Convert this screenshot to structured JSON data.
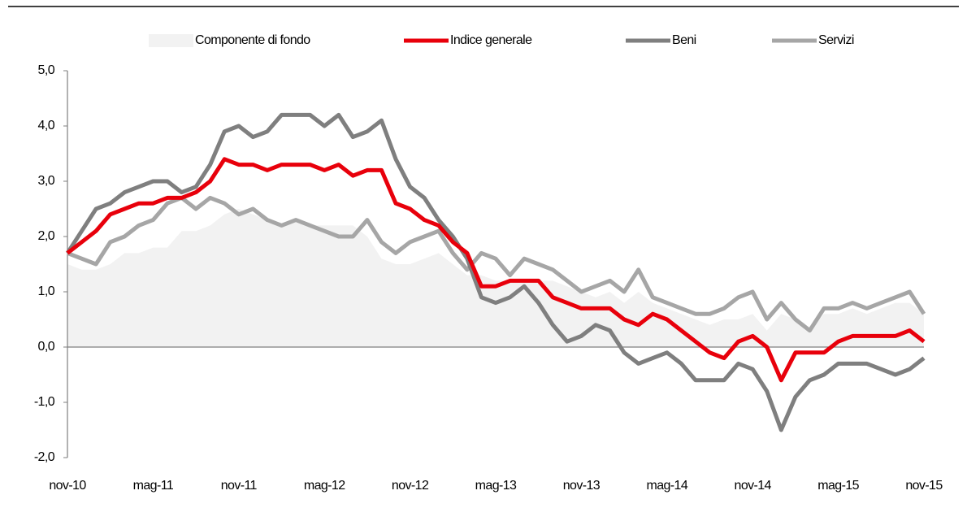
{
  "chart_data": {
    "type": "line",
    "categories": [
      "nov-10",
      null,
      null,
      null,
      null,
      null,
      "mag-11",
      null,
      null,
      null,
      null,
      null,
      "nov-11",
      null,
      null,
      null,
      null,
      null,
      "mag-12",
      null,
      null,
      null,
      null,
      null,
      "nov-12",
      null,
      null,
      null,
      null,
      null,
      "mag-13",
      null,
      null,
      null,
      null,
      null,
      "nov-13",
      null,
      null,
      null,
      null,
      null,
      "mag-14",
      null,
      null,
      null,
      null,
      null,
      "nov-14",
      null,
      null,
      null,
      null,
      null,
      "mag-15",
      null,
      null,
      null,
      null,
      null,
      "nov-15"
    ],
    "series": [
      {
        "name": "Componente di fondo",
        "kind": "area",
        "color": "#f2f2f2",
        "values": [
          1.5,
          1.4,
          1.4,
          1.5,
          1.7,
          1.7,
          1.8,
          1.8,
          2.1,
          2.1,
          2.2,
          2.4,
          2.5,
          2.4,
          2.3,
          2.2,
          2.3,
          2.2,
          2.2,
          2.2,
          2.2,
          2.0,
          1.6,
          1.5,
          1.5,
          1.6,
          1.7,
          1.5,
          1.3,
          1.3,
          1.2,
          1.2,
          1.2,
          1.2,
          1.2,
          1.1,
          1.0,
          0.9,
          1.0,
          0.8,
          1.0,
          0.8,
          0.7,
          0.6,
          0.5,
          0.4,
          0.5,
          0.5,
          0.6,
          0.3,
          0.6,
          0.5,
          0.3,
          0.6,
          0.6,
          0.7,
          0.6,
          0.7,
          0.8,
          0.8,
          0.6
        ]
      },
      {
        "name": "Indice generale",
        "color": "#e8000b",
        "values": [
          1.7,
          1.9,
          2.1,
          2.4,
          2.5,
          2.6,
          2.6,
          2.7,
          2.7,
          2.8,
          3.0,
          3.4,
          3.3,
          3.3,
          3.2,
          3.3,
          3.3,
          3.3,
          3.2,
          3.3,
          3.1,
          3.2,
          3.2,
          2.6,
          2.5,
          2.3,
          2.2,
          1.9,
          1.7,
          1.1,
          1.1,
          1.2,
          1.2,
          1.2,
          0.9,
          0.8,
          0.7,
          0.7,
          0.7,
          0.5,
          0.4,
          0.6,
          0.5,
          0.3,
          0.1,
          -0.1,
          -0.2,
          0.1,
          0.2,
          0.0,
          -0.6,
          -0.1,
          -0.1,
          -0.1,
          0.1,
          0.2,
          0.2,
          0.2,
          0.2,
          0.3,
          0.1
        ]
      },
      {
        "name": "Beni",
        "color": "#7f7f7f",
        "values": [
          1.7,
          2.1,
          2.5,
          2.6,
          2.8,
          2.9,
          3.0,
          3.0,
          2.8,
          2.9,
          3.3,
          3.9,
          4.0,
          3.8,
          3.9,
          4.2,
          4.2,
          4.2,
          4.0,
          4.2,
          3.8,
          3.9,
          4.1,
          3.4,
          2.9,
          2.7,
          2.3,
          2.0,
          1.6,
          0.9,
          0.8,
          0.9,
          1.1,
          0.8,
          0.4,
          0.1,
          0.2,
          0.4,
          0.3,
          -0.1,
          -0.3,
          -0.2,
          -0.1,
          -0.3,
          -0.6,
          -0.6,
          -0.6,
          -0.3,
          -0.4,
          -0.8,
          -1.5,
          -0.9,
          -0.6,
          -0.5,
          -0.3,
          -0.3,
          -0.3,
          -0.4,
          -0.5,
          -0.4,
          -0.2
        ]
      },
      {
        "name": "Servizi",
        "color": "#a6a6a6",
        "values": [
          1.7,
          1.6,
          1.5,
          1.9,
          2.0,
          2.2,
          2.3,
          2.6,
          2.7,
          2.5,
          2.7,
          2.6,
          2.4,
          2.5,
          2.3,
          2.2,
          2.3,
          2.2,
          2.1,
          2.0,
          2.0,
          2.3,
          1.9,
          1.7,
          1.9,
          2.0,
          2.1,
          1.7,
          1.4,
          1.7,
          1.6,
          1.3,
          1.6,
          1.5,
          1.4,
          1.2,
          1.0,
          1.1,
          1.2,
          1.0,
          1.4,
          0.9,
          0.8,
          0.7,
          0.6,
          0.6,
          0.7,
          0.9,
          1.0,
          0.5,
          0.8,
          0.5,
          0.3,
          0.7,
          0.7,
          0.8,
          0.7,
          0.8,
          0.9,
          1.0,
          0.6
        ]
      }
    ],
    "ylim": [
      -2,
      5
    ],
    "yticks": [
      {
        "value": -2,
        "label": "-2,0"
      },
      {
        "value": -1,
        "label": "-1,0"
      },
      {
        "value": 0,
        "label": "0,0"
      },
      {
        "value": 1,
        "label": "1,0"
      },
      {
        "value": 2,
        "label": "2,0"
      },
      {
        "value": 3,
        "label": "3,0"
      },
      {
        "value": 4,
        "label": "4,0"
      },
      {
        "value": 5,
        "label": "5,0"
      }
    ],
    "legend": "top"
  }
}
